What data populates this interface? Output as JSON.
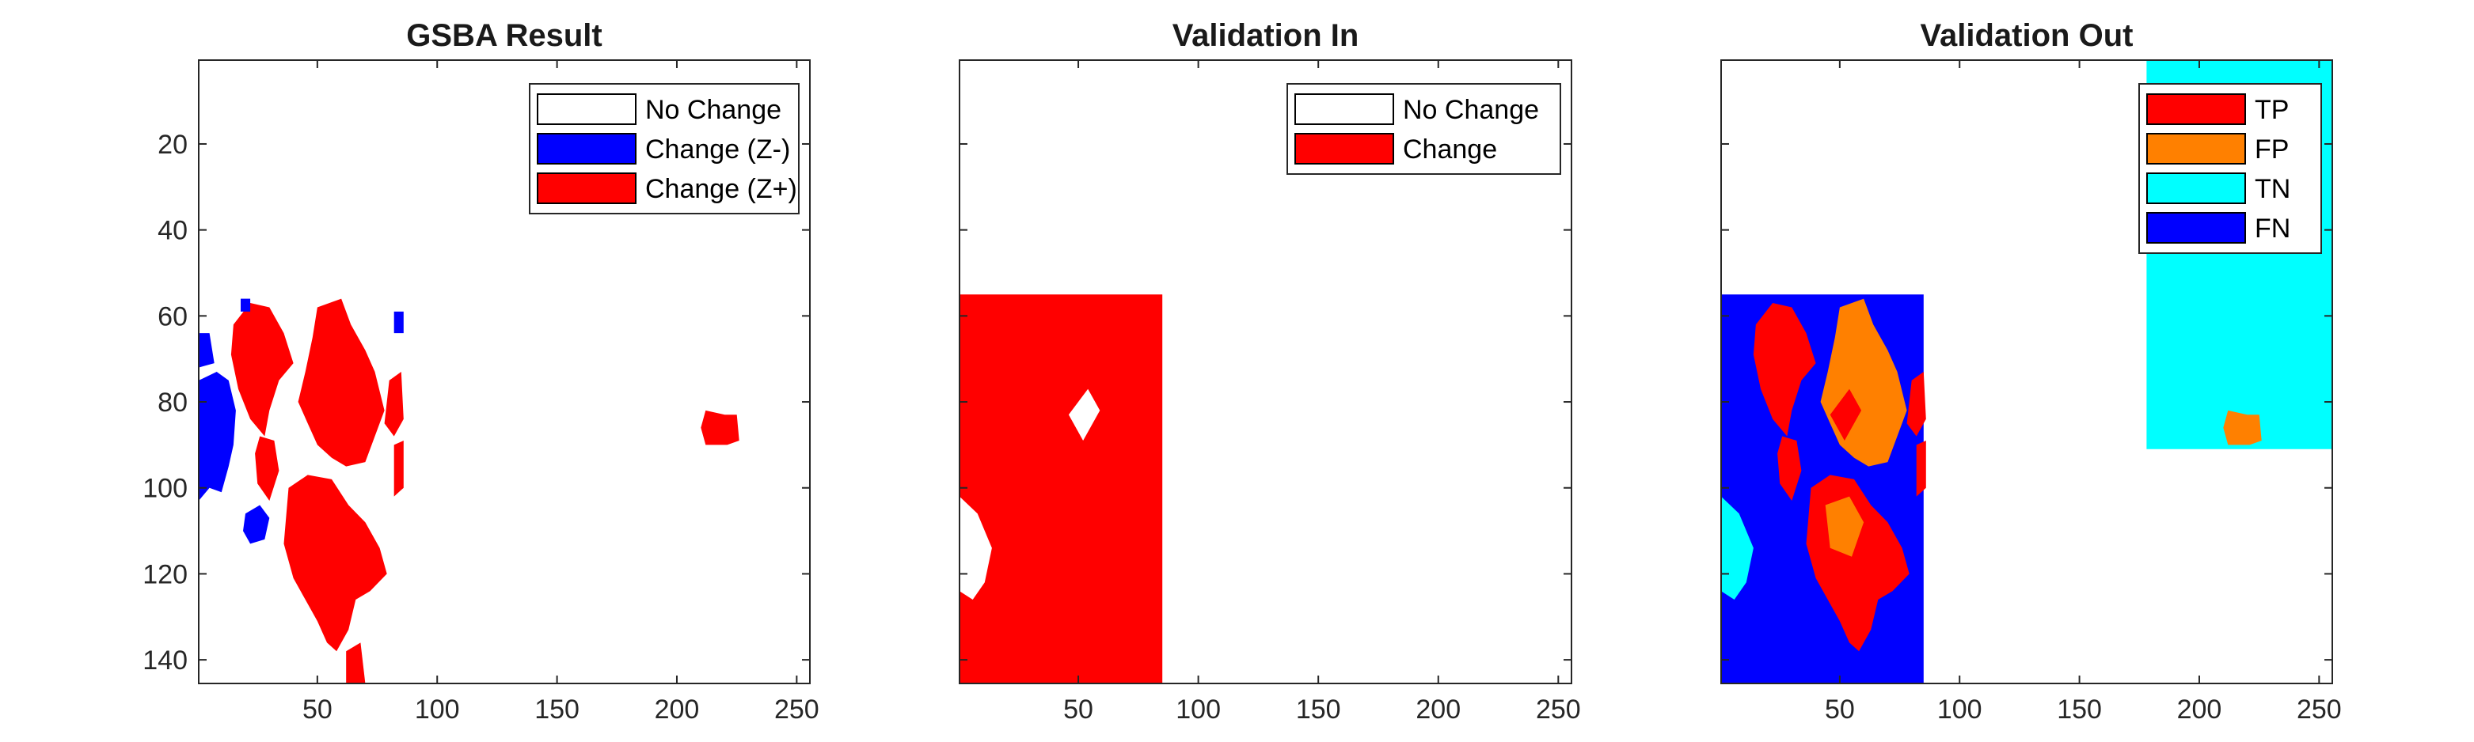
{
  "colors": {
    "no_change": "#ffffff",
    "change_neg": "#0000ff",
    "change_pos": "#ff0000",
    "tp": "#ff0000",
    "fp": "#ff8000",
    "tn": "#00ffff",
    "fn": "#0000ff"
  },
  "chart_data": [
    {
      "type": "heatmap",
      "title": "GSBA Result",
      "xlim": [
        0.5,
        255.5
      ],
      "ylim": [
        0.5,
        145.5
      ],
      "y_reversed": true,
      "xticks": [
        50,
        100,
        150,
        200,
        250
      ],
      "yticks": [
        20,
        40,
        60,
        80,
        100,
        120,
        140
      ],
      "legend": {
        "placement": "top-right",
        "entries": [
          {
            "label": "No Change",
            "color": "#ffffff"
          },
          {
            "label": "Change (Z-)",
            "color": "#0000ff"
          },
          {
            "label": "Change (Z+)",
            "color": "#ff0000"
          }
        ]
      },
      "regions": [
        {
          "class": "Change (Z+)",
          "polygon": [
            [
              15,
              62
            ],
            [
              22,
              57
            ],
            [
              30,
              58
            ],
            [
              36,
              64
            ],
            [
              40,
              71
            ],
            [
              34,
              75
            ],
            [
              30,
              82
            ],
            [
              28,
              88
            ],
            [
              22,
              84
            ],
            [
              17,
              77
            ],
            [
              14,
              69
            ]
          ]
        },
        {
          "class": "Change (Z+)",
          "polygon": [
            [
              50,
              58
            ],
            [
              60,
              56
            ],
            [
              64,
              62
            ],
            [
              70,
              68
            ],
            [
              74,
              73
            ],
            [
              78,
              82
            ],
            [
              74,
              88
            ],
            [
              70,
              94
            ],
            [
              62,
              95
            ],
            [
              56,
              93
            ],
            [
              50,
              90
            ],
            [
              46,
              85
            ],
            [
              42,
              80
            ],
            [
              45,
              73
            ],
            [
              48,
              65
            ]
          ]
        },
        {
          "class": "Change (Z+)",
          "polygon": [
            [
              80,
              75
            ],
            [
              85,
              73
            ],
            [
              86,
              84
            ],
            [
              82,
              88
            ],
            [
              78,
              85
            ]
          ]
        },
        {
          "class": "Change (Z+)",
          "polygon": [
            [
              26,
              88
            ],
            [
              32,
              89
            ],
            [
              34,
              96
            ],
            [
              30,
              103
            ],
            [
              25,
              99
            ],
            [
              24,
              92
            ]
          ]
        },
        {
          "class": "Change (Z+)",
          "polygon": [
            [
              82,
              90
            ],
            [
              86,
              89
            ],
            [
              86,
              100
            ],
            [
              82,
              102
            ]
          ]
        },
        {
          "class": "Change (Z+)",
          "polygon": [
            [
              38,
              100
            ],
            [
              46,
              97
            ],
            [
              56,
              98
            ],
            [
              63,
              104
            ],
            [
              70,
              108
            ],
            [
              76,
              114
            ],
            [
              79,
              120
            ],
            [
              72,
              124
            ],
            [
              66,
              126
            ],
            [
              63,
              133
            ],
            [
              58,
              138
            ],
            [
              54,
              136
            ],
            [
              50,
              131
            ],
            [
              45,
              126
            ],
            [
              40,
              121
            ],
            [
              36,
              113
            ]
          ]
        },
        {
          "class": "Change (Z+)",
          "polygon": [
            [
              62,
              138
            ],
            [
              68,
              136
            ],
            [
              70,
              145.5
            ],
            [
              62,
              145.5
            ]
          ]
        },
        {
          "class": "Change (Z+)",
          "polygon": [
            [
              212,
              82
            ],
            [
              220,
              83
            ],
            [
              225,
              83
            ],
            [
              226,
              89
            ],
            [
              221,
              90
            ],
            [
              212,
              90
            ],
            [
              210,
              86
            ]
          ]
        },
        {
          "class": "Change (Z-)",
          "polygon": [
            [
              0.5,
              64
            ],
            [
              5,
              64
            ],
            [
              7,
              71
            ],
            [
              0.5,
              72
            ]
          ]
        },
        {
          "class": "Change (Z-)",
          "polygon": [
            [
              0.5,
              75
            ],
            [
              8,
              73
            ],
            [
              13,
              75
            ],
            [
              16,
              82
            ],
            [
              15,
              90
            ],
            [
              13,
              95
            ],
            [
              10,
              101
            ],
            [
              5,
              100
            ],
            [
              0.5,
              103
            ]
          ]
        },
        {
          "class": "Change (Z-)",
          "polygon": [
            [
              20,
              106
            ],
            [
              26,
              104
            ],
            [
              30,
              107
            ],
            [
              28,
              112
            ],
            [
              22,
              113
            ],
            [
              19,
              110
            ]
          ]
        },
        {
          "class": "Change (Z-)",
          "polygon": [
            [
              18,
              56
            ],
            [
              22,
              56
            ],
            [
              22,
              59
            ],
            [
              18,
              59
            ]
          ]
        },
        {
          "class": "Change (Z-)",
          "polygon": [
            [
              82,
              59
            ],
            [
              86,
              59
            ],
            [
              86,
              64
            ],
            [
              82,
              64
            ]
          ]
        }
      ]
    },
    {
      "type": "heatmap",
      "title": "Validation In",
      "xlim": [
        0.5,
        255.5
      ],
      "ylim": [
        0.5,
        145.5
      ],
      "y_reversed": true,
      "xticks": [
        50,
        100,
        150,
        200,
        250
      ],
      "yticks": [
        20,
        40,
        60,
        80,
        100,
        120,
        140
      ],
      "legend": {
        "placement": "top-right",
        "entries": [
          {
            "label": "No Change",
            "color": "#ffffff"
          },
          {
            "label": "Change",
            "color": "#ff0000"
          }
        ]
      },
      "regions": [
        {
          "class": "Change",
          "polygon": [
            [
              0.5,
              55
            ],
            [
              85,
              55
            ],
            [
              85,
              145.5
            ],
            [
              0.5,
              145.5
            ]
          ]
        },
        {
          "class": "No Change",
          "polygon": [
            [
              46,
              83
            ],
            [
              54,
              77
            ],
            [
              59,
              82
            ],
            [
              52,
              89
            ]
          ]
        },
        {
          "class": "No Change",
          "polygon": [
            [
              0.5,
              102
            ],
            [
              8,
              106
            ],
            [
              14,
              114
            ],
            [
              11,
              122
            ],
            [
              6,
              126
            ],
            [
              0.5,
              124
            ]
          ]
        }
      ]
    },
    {
      "type": "heatmap",
      "title": "Validation Out",
      "xlim": [
        0.5,
        255.5
      ],
      "ylim": [
        0.5,
        145.5
      ],
      "y_reversed": true,
      "xticks": [
        50,
        100,
        150,
        200,
        250
      ],
      "yticks": [
        20,
        40,
        60,
        80,
        100,
        120,
        140
      ],
      "legend": {
        "placement": "top-right",
        "entries": [
          {
            "label": "TP",
            "color": "#ff0000"
          },
          {
            "label": "FP",
            "color": "#ff8000"
          },
          {
            "label": "TN",
            "color": "#00ffff"
          },
          {
            "label": "FN",
            "color": "#0000ff"
          }
        ]
      },
      "regions": [
        {
          "class": "TN",
          "polygon": [
            [
              178,
              0.5
            ],
            [
              255.5,
              0.5
            ],
            [
              255.5,
              91
            ],
            [
              178,
              91
            ]
          ]
        },
        {
          "class": "FP",
          "polygon": [
            [
              212,
              82
            ],
            [
              220,
              83
            ],
            [
              225,
              83
            ],
            [
              226,
              89
            ],
            [
              221,
              90
            ],
            [
              212,
              90
            ],
            [
              210,
              86
            ]
          ]
        },
        {
          "class": "FN",
          "polygon": [
            [
              0.5,
              55
            ],
            [
              85,
              55
            ],
            [
              85,
              145.5
            ],
            [
              0.5,
              145.5
            ]
          ]
        },
        {
          "class": "TP",
          "polygon": [
            [
              15,
              62
            ],
            [
              22,
              57
            ],
            [
              30,
              58
            ],
            [
              36,
              64
            ],
            [
              40,
              71
            ],
            [
              34,
              75
            ],
            [
              30,
              82
            ],
            [
              28,
              88
            ],
            [
              22,
              84
            ],
            [
              17,
              77
            ],
            [
              14,
              69
            ]
          ]
        },
        {
          "class": "FP",
          "polygon": [
            [
              50,
              58
            ],
            [
              60,
              56
            ],
            [
              64,
              62
            ],
            [
              70,
              68
            ],
            [
              74,
              73
            ],
            [
              78,
              82
            ],
            [
              74,
              88
            ],
            [
              70,
              94
            ],
            [
              62,
              95
            ],
            [
              56,
              93
            ],
            [
              50,
              90
            ],
            [
              46,
              85
            ],
            [
              42,
              80
            ],
            [
              45,
              73
            ],
            [
              48,
              65
            ]
          ]
        },
        {
          "class": "TP",
          "polygon": [
            [
              46,
              83
            ],
            [
              54,
              77
            ],
            [
              59,
              82
            ],
            [
              52,
              89
            ]
          ]
        },
        {
          "class": "TP",
          "polygon": [
            [
              80,
              75
            ],
            [
              85,
              73
            ],
            [
              86,
              84
            ],
            [
              82,
              88
            ],
            [
              78,
              85
            ]
          ]
        },
        {
          "class": "TP",
          "polygon": [
            [
              26,
              88
            ],
            [
              32,
              89
            ],
            [
              34,
              96
            ],
            [
              30,
              103
            ],
            [
              25,
              99
            ],
            [
              24,
              92
            ]
          ]
        },
        {
          "class": "TP",
          "polygon": [
            [
              82,
              90
            ],
            [
              86,
              89
            ],
            [
              86,
              100
            ],
            [
              82,
              102
            ]
          ]
        },
        {
          "class": "TP",
          "polygon": [
            [
              38,
              100
            ],
            [
              46,
              97
            ],
            [
              56,
              98
            ],
            [
              63,
              104
            ],
            [
              70,
              108
            ],
            [
              76,
              114
            ],
            [
              79,
              120
            ],
            [
              72,
              124
            ],
            [
              66,
              126
            ],
            [
              63,
              133
            ],
            [
              58,
              138
            ],
            [
              54,
              136
            ],
            [
              50,
              131
            ],
            [
              45,
              126
            ],
            [
              40,
              121
            ],
            [
              36,
              113
            ]
          ]
        },
        {
          "class": "FP",
          "polygon": [
            [
              44,
              104
            ],
            [
              54,
              102
            ],
            [
              60,
              108
            ],
            [
              55,
              116
            ],
            [
              46,
              114
            ]
          ]
        },
        {
          "class": "TN",
          "polygon": [
            [
              0.5,
              102
            ],
            [
              8,
              106
            ],
            [
              14,
              114
            ],
            [
              11,
              122
            ],
            [
              6,
              126
            ],
            [
              0.5,
              124
            ]
          ]
        }
      ]
    }
  ]
}
